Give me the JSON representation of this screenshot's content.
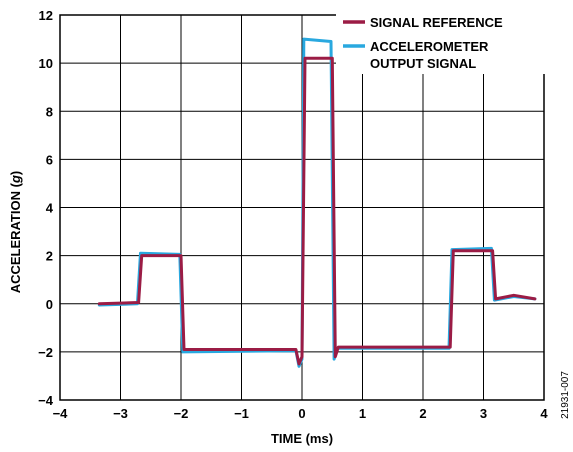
{
  "chart_data": {
    "type": "line",
    "title": "",
    "xlabel": "TIME (ms)",
    "ylabel_prefix": "ACCELERATION (",
    "ylabel_unit": "g",
    "ylabel_suffix": ")",
    "xlim": [
      -4,
      4
    ],
    "ylim": [
      -4,
      12
    ],
    "x_ticks": [
      -4,
      -3,
      -2,
      -1,
      0,
      1,
      2,
      3,
      4
    ],
    "x_tick_labels": [
      "−4",
      "−3",
      "−2",
      "−1",
      "0",
      "1",
      "2",
      "3",
      "4"
    ],
    "y_ticks": [
      -4,
      -2,
      0,
      2,
      4,
      6,
      8,
      10,
      12
    ],
    "y_tick_labels": [
      "−4",
      "−2",
      "0",
      "2",
      "4",
      "6",
      "8",
      "10",
      "12"
    ],
    "grid": true,
    "legend_position": "top-right",
    "legend": [
      {
        "label_lines": [
          "SIGNAL REFERENCE"
        ]
      },
      {
        "label_lines": [
          "ACCELEROMETER",
          "OUTPUT SIGNAL"
        ]
      }
    ],
    "figure_id": "21931-007",
    "series": [
      {
        "name": "SIGNAL REFERENCE",
        "color": "#9b1c45",
        "x": [
          -3.35,
          -2.7,
          -2.65,
          -2.0,
          -1.95,
          -0.1,
          -0.05,
          0.0,
          0.05,
          0.5,
          0.55,
          0.6,
          2.45,
          2.5,
          3.15,
          3.2,
          3.5,
          3.85
        ],
        "y": [
          0.0,
          0.05,
          2.0,
          2.0,
          -1.9,
          -1.9,
          -2.5,
          -2.2,
          10.2,
          10.2,
          -2.2,
          -1.8,
          -1.8,
          2.2,
          2.2,
          0.2,
          0.35,
          0.2
        ]
      },
      {
        "name": "ACCELEROMETER OUTPUT SIGNAL",
        "color": "#29a8df",
        "x": [
          -3.35,
          -2.72,
          -2.67,
          -2.02,
          -1.97,
          -0.1,
          -0.05,
          0.0,
          0.03,
          0.48,
          0.53,
          0.58,
          2.43,
          2.48,
          3.13,
          3.18,
          3.5,
          3.85
        ],
        "y": [
          -0.05,
          0.0,
          2.1,
          2.05,
          -2.0,
          -1.95,
          -2.6,
          -2.3,
          11.0,
          10.9,
          -2.3,
          -1.85,
          -1.85,
          2.25,
          2.3,
          0.15,
          0.3,
          0.2
        ]
      }
    ]
  }
}
